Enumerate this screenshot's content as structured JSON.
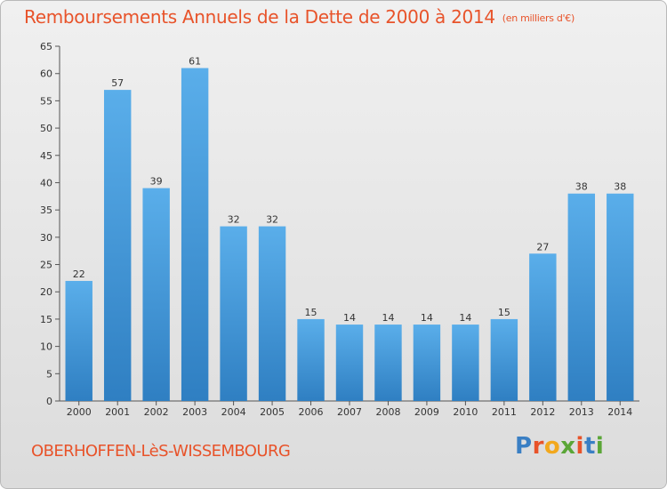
{
  "header": {
    "title": "Remboursements Annuels de la Dette de 2000 à 2014",
    "subtitle": "(en milliers d'€)"
  },
  "footer": {
    "commune": "OBERHOFFEN-LèS-WISSEMBOURG",
    "logo": {
      "letters": [
        "P",
        "r",
        "o",
        "x",
        "i",
        "t",
        "i"
      ],
      "colors": [
        "#3a7fc4",
        "#e8532a",
        "#f2a81d",
        "#5aa637",
        "#e8532a",
        "#3a7fc4",
        "#5aa637"
      ]
    }
  },
  "chart_data": {
    "type": "bar",
    "categories": [
      "2000",
      "2001",
      "2002",
      "2003",
      "2004",
      "2005",
      "2006",
      "2007",
      "2008",
      "2009",
      "2010",
      "2011",
      "2012",
      "2013",
      "2014"
    ],
    "values": [
      22,
      57,
      39,
      61,
      32,
      32,
      15,
      14,
      14,
      14,
      14,
      15,
      27,
      38,
      38
    ],
    "title": "Remboursements Annuels de la Dette de 2000 à 2014",
    "subtitle": "(en milliers d'€)",
    "xlabel": "",
    "ylabel": "",
    "ylim": [
      0,
      65
    ],
    "yticks": [
      0,
      5,
      10,
      15,
      20,
      25,
      30,
      35,
      40,
      45,
      50,
      55,
      60,
      65
    ],
    "grid": false,
    "bar_color": "#4c9be0",
    "data_labels": true
  }
}
